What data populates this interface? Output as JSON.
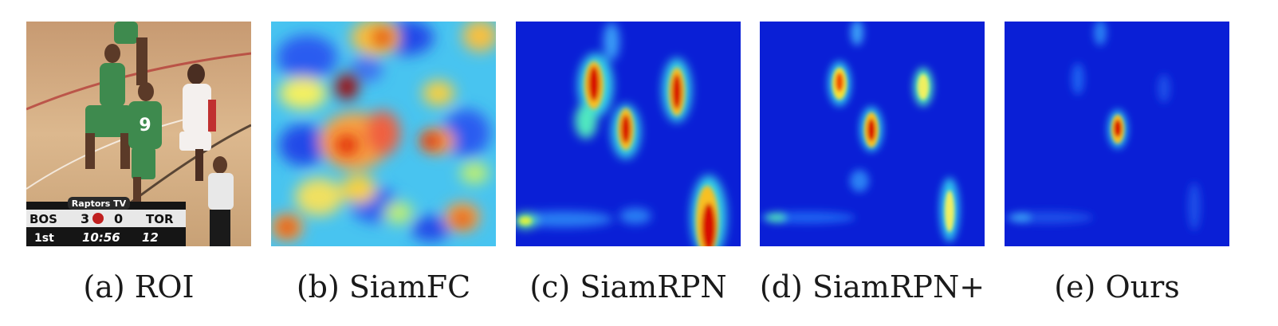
{
  "panels": [
    {
      "id": "a",
      "caption": "(a) ROI"
    },
    {
      "id": "b",
      "caption": "(b) SiamFC"
    },
    {
      "id": "c",
      "caption": "(c) SiamRPN"
    },
    {
      "id": "d",
      "caption": "(d) SiamRPN+"
    },
    {
      "id": "e",
      "caption": "(e) Ours"
    }
  ],
  "scoreboard": {
    "brand": "Raptors TV",
    "home_team": "BOS",
    "home_score": "3",
    "away_score": "0",
    "away_team": "TOR",
    "period": "1st",
    "clock": "10:56",
    "shot_clock": "12"
  },
  "jersey_number": "9",
  "colors": {
    "heatmap_background": "#0a1fd6",
    "heatmap_peak": "#c00000",
    "court": "#d8b48a",
    "celtics_green": "#3e8a4e"
  }
}
